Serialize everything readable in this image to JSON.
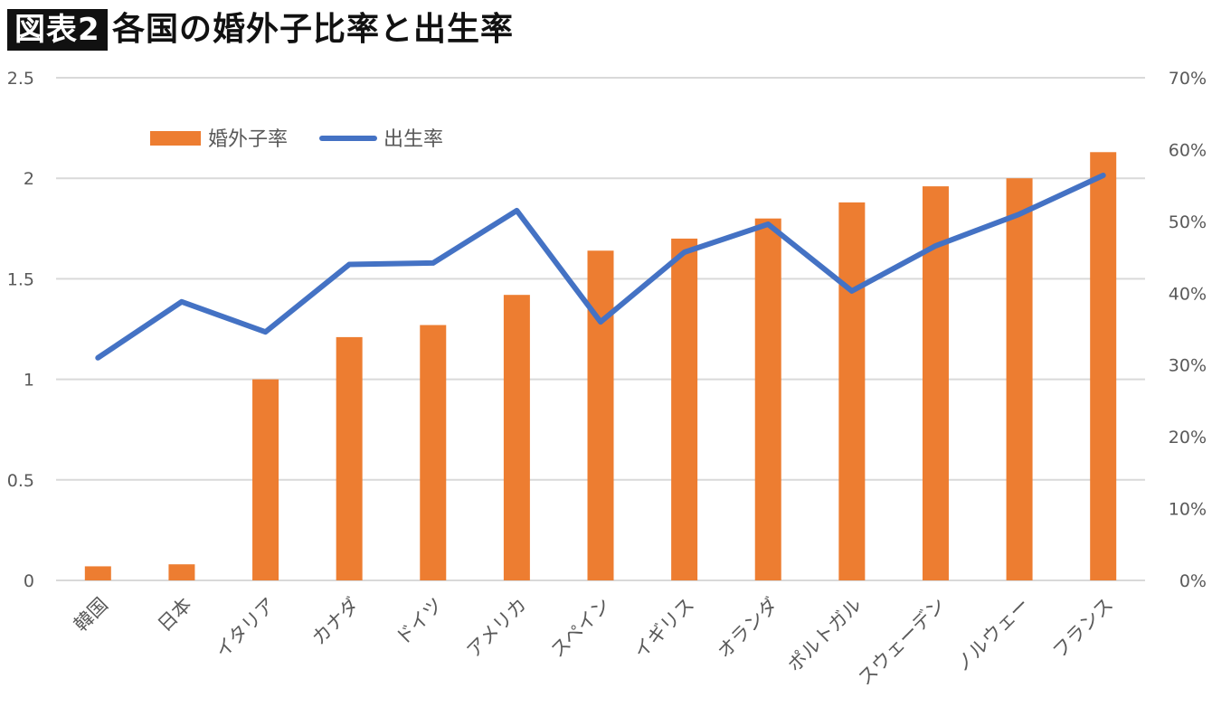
{
  "title": {
    "badge": "図表2",
    "text": "各国の婚外子比率と出生率"
  },
  "chart_data": {
    "type": "bar+line",
    "categories": [
      "韓国",
      "日本",
      "イタリア",
      "カナダ",
      "ドイツ",
      "アメリカ",
      "スペイン",
      "イギリス",
      "オランダ",
      "ポルトガル",
      "スウェーデン",
      "ノルウェー",
      "フランス"
    ],
    "series": [
      {
        "name": "婚外子率",
        "type": "bar",
        "axis": "left",
        "color": "#ED7D31",
        "values": [
          0.07,
          0.08,
          1.0,
          1.21,
          1.27,
          1.42,
          1.64,
          1.7,
          1.8,
          1.88,
          1.96,
          2.0,
          2.13
        ]
      },
      {
        "name": "出生率",
        "type": "line",
        "axis": "right",
        "color": "#4472C4",
        "values": [
          31.0,
          38.8,
          34.6,
          44.0,
          44.2,
          51.5,
          36.0,
          45.7,
          49.6,
          40.3,
          46.6,
          51.0,
          56.4
        ]
      }
    ],
    "y_left": {
      "min": 0,
      "max": 2.5,
      "ticks": [
        "0",
        "0.5",
        "1",
        "1.5",
        "2",
        "2.5"
      ]
    },
    "y_right": {
      "min": 0,
      "max": 70,
      "ticks": [
        "0%",
        "10%",
        "20%",
        "30%",
        "40%",
        "50%",
        "60%",
        "70%"
      ]
    },
    "grid": true,
    "legend": "top-left"
  }
}
